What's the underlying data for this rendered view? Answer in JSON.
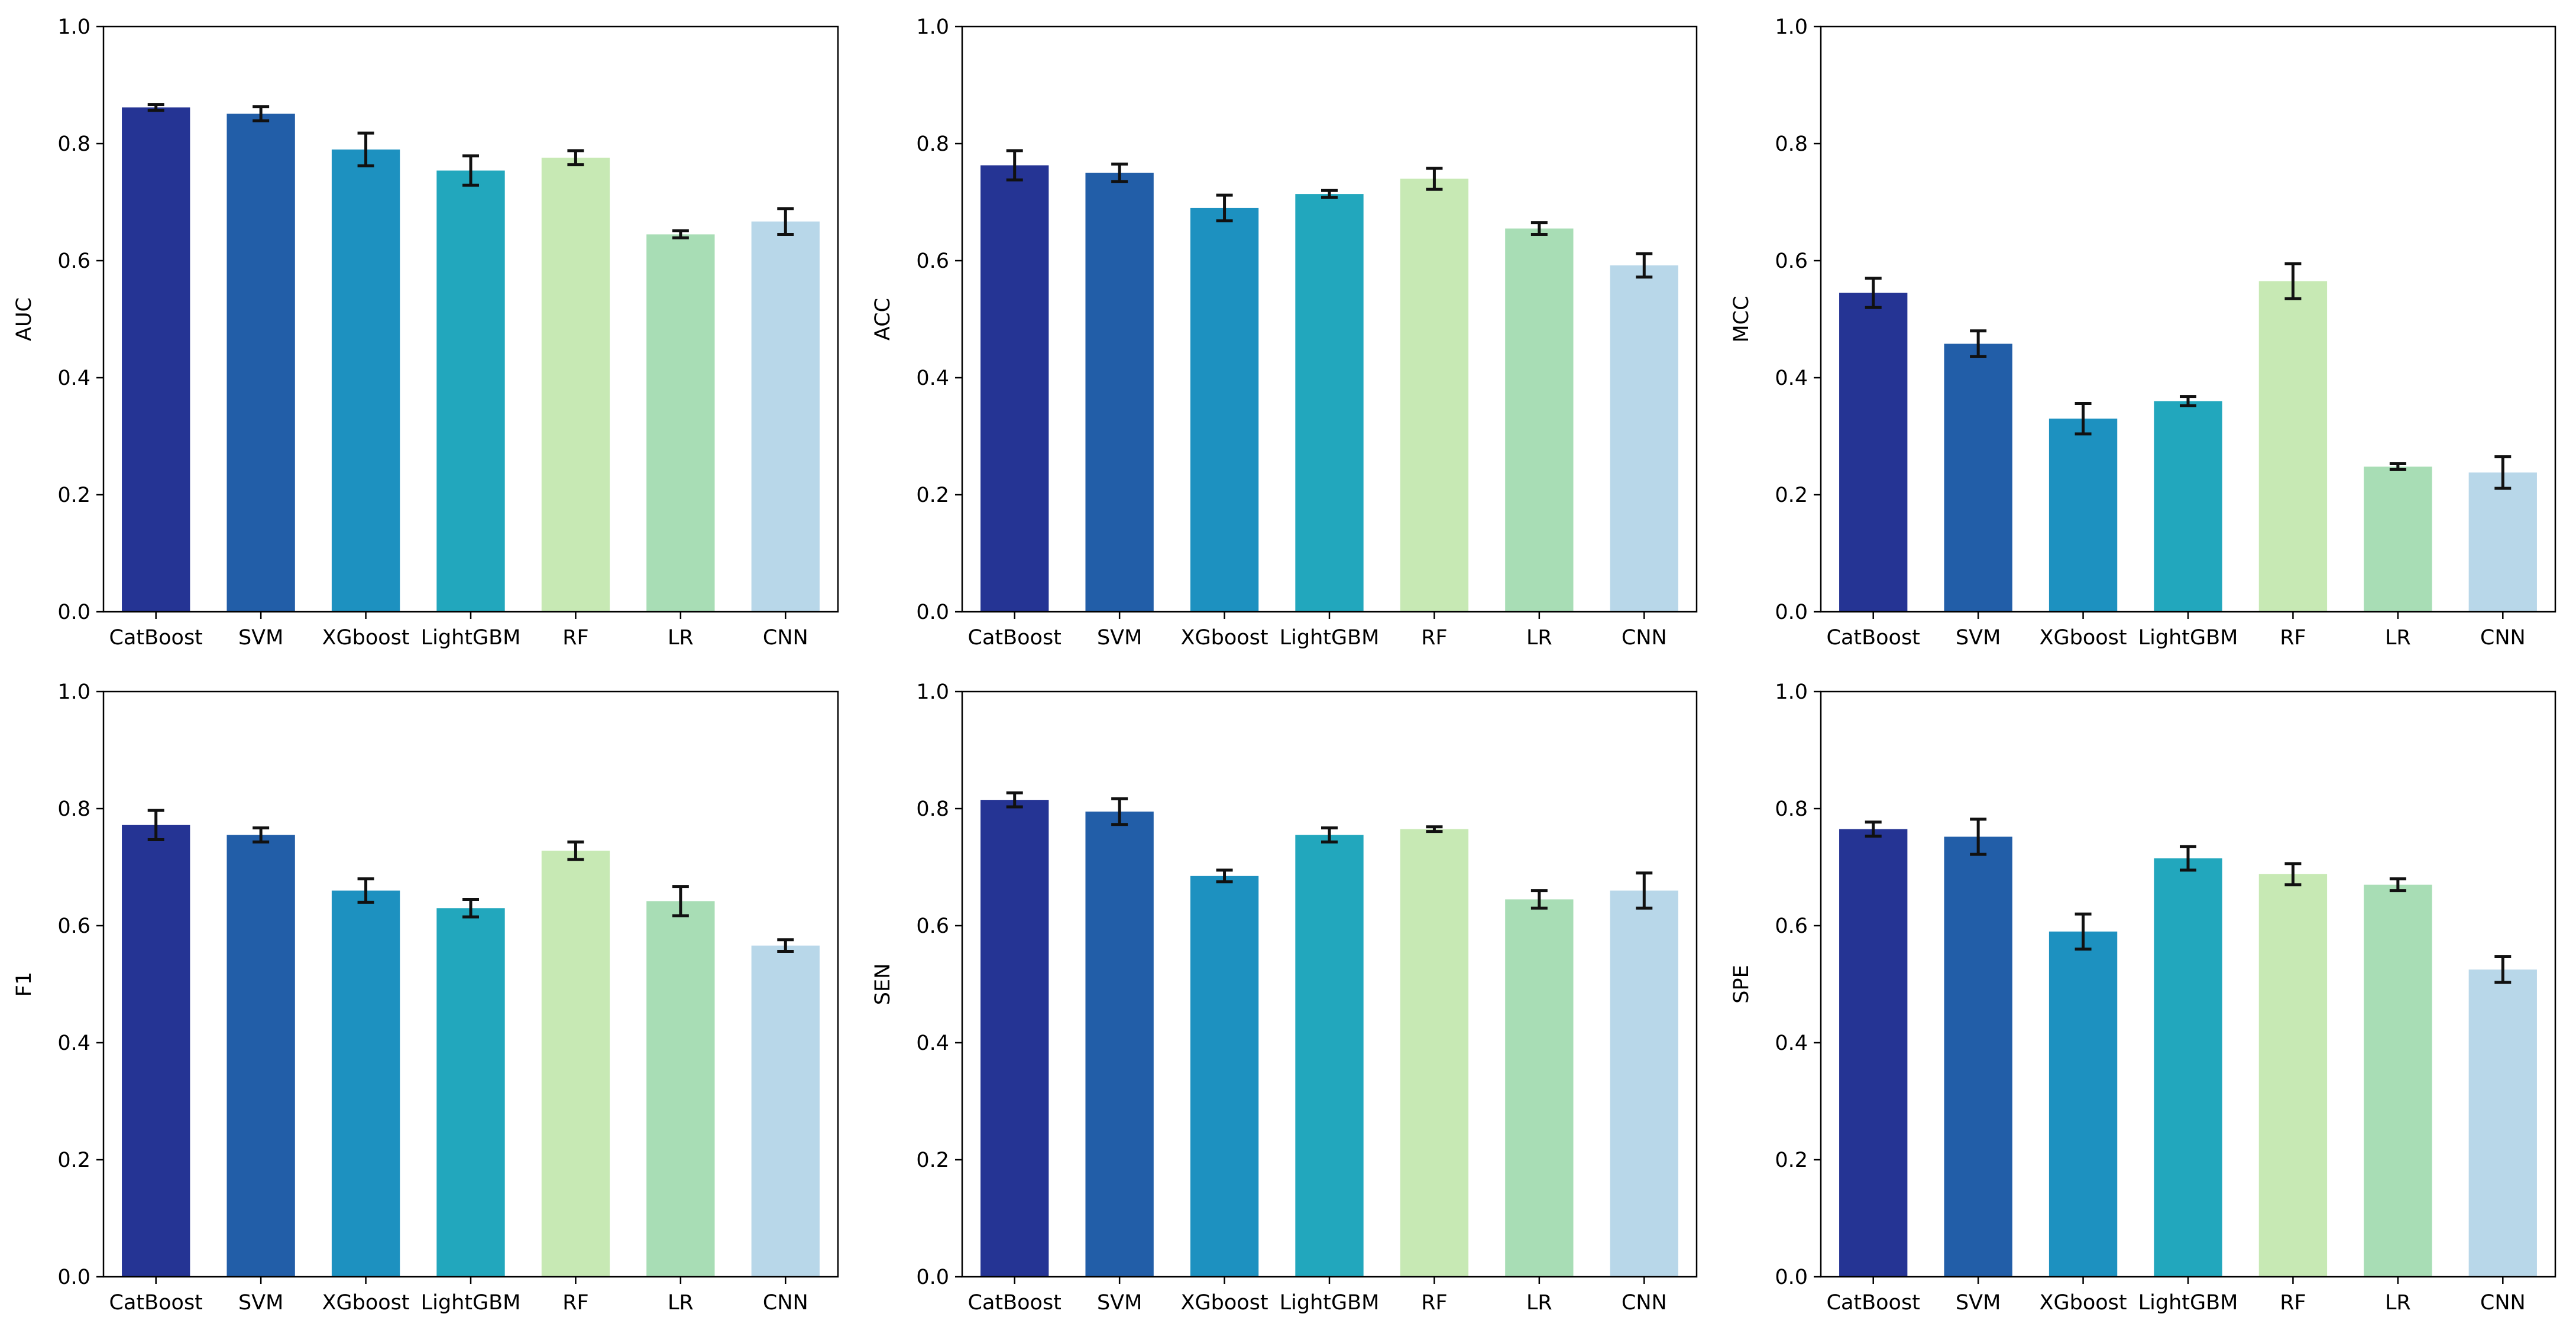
{
  "chart_data": {
    "type": "bar",
    "title": "",
    "layout": {
      "rows": 2,
      "cols": 3,
      "grid": false,
      "legend": "none",
      "error_bars": true
    },
    "categories": [
      "CatBoost",
      "SVM",
      "XGboost",
      "LightGBM",
      "RF",
      "LR",
      "CNN"
    ],
    "bar_colors": [
      "#253494",
      "#225ea8",
      "#1d91c0",
      "#22a7bd",
      "#c7e9b4",
      "#a8ddb5",
      "#b8d7e9"
    ],
    "errorbar_color": "#111111",
    "axis_color": "#000000",
    "ylim": [
      0.0,
      1.0
    ],
    "yticks": [
      "0.0",
      "0.2",
      "0.4",
      "0.6",
      "0.8",
      "1.0"
    ],
    "subplots": [
      {
        "ylabel": "AUC",
        "values": [
          0.862,
          0.851,
          0.79,
          0.754,
          0.776,
          0.645,
          0.667
        ],
        "errors": [
          0.005,
          0.012,
          0.028,
          0.025,
          0.012,
          0.006,
          0.022
        ]
      },
      {
        "ylabel": "ACC",
        "values": [
          0.763,
          0.75,
          0.69,
          0.714,
          0.74,
          0.655,
          0.592
        ],
        "errors": [
          0.025,
          0.015,
          0.022,
          0.006,
          0.018,
          0.01,
          0.02
        ]
      },
      {
        "ylabel": "MCC",
        "values": [
          0.545,
          0.458,
          0.33,
          0.36,
          0.565,
          0.248,
          0.238
        ],
        "errors": [
          0.025,
          0.022,
          0.026,
          0.008,
          0.03,
          0.005,
          0.027
        ]
      },
      {
        "ylabel": "F1",
        "values": [
          0.772,
          0.755,
          0.66,
          0.63,
          0.728,
          0.642,
          0.566
        ],
        "errors": [
          0.025,
          0.012,
          0.02,
          0.015,
          0.015,
          0.025,
          0.01
        ]
      },
      {
        "ylabel": "SEN",
        "values": [
          0.815,
          0.795,
          0.685,
          0.755,
          0.765,
          0.645,
          0.66
        ],
        "errors": [
          0.012,
          0.022,
          0.01,
          0.012,
          0.004,
          0.015,
          0.03
        ]
      },
      {
        "ylabel": "SPE",
        "values": [
          0.765,
          0.752,
          0.59,
          0.715,
          0.688,
          0.67,
          0.525
        ],
        "errors": [
          0.012,
          0.03,
          0.03,
          0.02,
          0.018,
          0.01,
          0.022
        ]
      }
    ]
  }
}
